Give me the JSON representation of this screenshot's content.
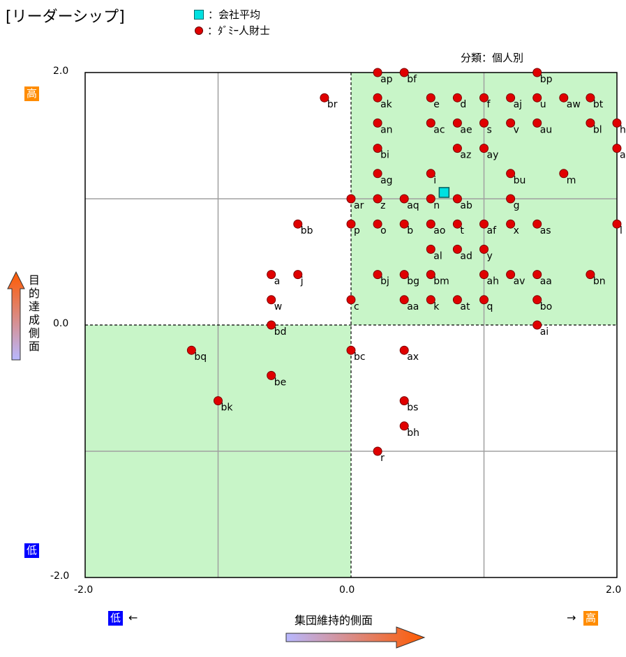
{
  "title": "[リーダーシップ]",
  "legend": {
    "avg_label": "：会社平均",
    "person_label": "：ﾀﾞﾐｰ人財士",
    "avg_color": "#00e0e0",
    "person_color": "#e00000"
  },
  "classification": "分類：個人別",
  "axes": {
    "x_label": "集団維持的側面",
    "y_label": "目的達成側面",
    "high": "高",
    "low": "低",
    "left_arrow": "←",
    "right_arrow": "→",
    "x_ticks": [
      "-2.0",
      "0.0",
      "2.0"
    ],
    "y_ticks": [
      "2.0",
      "0.0",
      "-2.0"
    ],
    "high_color": "#ff8c00",
    "low_color": "#0000ff",
    "quadrant_color": "#c8f5c8"
  },
  "chart_data": {
    "type": "scatter",
    "title": "[リーダーシップ]",
    "xlabel": "集団維持的側面",
    "ylabel": "目的達成側面",
    "xlim": [
      -2.0,
      2.0
    ],
    "ylim": [
      -2.0,
      2.0
    ],
    "grid": true,
    "company_average": {
      "x": 0.7,
      "y": 1.05
    },
    "points": [
      {
        "label": "ap",
        "x": 0.2,
        "y": 2.0
      },
      {
        "label": "bf",
        "x": 0.4,
        "y": 2.0
      },
      {
        "label": "bp",
        "x": 1.4,
        "y": 2.0
      },
      {
        "label": "br",
        "x": -0.2,
        "y": 1.8
      },
      {
        "label": "ak",
        "x": 0.2,
        "y": 1.8
      },
      {
        "label": "e",
        "x": 0.6,
        "y": 1.8
      },
      {
        "label": "d",
        "x": 0.8,
        "y": 1.8
      },
      {
        "label": "f",
        "x": 1.0,
        "y": 1.8
      },
      {
        "label": "aj",
        "x": 1.2,
        "y": 1.8
      },
      {
        "label": "u",
        "x": 1.4,
        "y": 1.8
      },
      {
        "label": "aw",
        "x": 1.6,
        "y": 1.8
      },
      {
        "label": "bt",
        "x": 1.8,
        "y": 1.8
      },
      {
        "label": "an",
        "x": 0.2,
        "y": 1.6
      },
      {
        "label": "ac",
        "x": 0.6,
        "y": 1.6
      },
      {
        "label": "ae",
        "x": 0.8,
        "y": 1.6
      },
      {
        "label": "s",
        "x": 1.0,
        "y": 1.6
      },
      {
        "label": "v",
        "x": 1.2,
        "y": 1.6
      },
      {
        "label": "au",
        "x": 1.4,
        "y": 1.6
      },
      {
        "label": "bl",
        "x": 1.8,
        "y": 1.6
      },
      {
        "label": "h",
        "x": 2.0,
        "y": 1.6
      },
      {
        "label": "bi",
        "x": 0.2,
        "y": 1.4
      },
      {
        "label": "az",
        "x": 0.8,
        "y": 1.4
      },
      {
        "label": "ay",
        "x": 1.0,
        "y": 1.4
      },
      {
        "label": "a",
        "x": 2.0,
        "y": 1.4
      },
      {
        "label": "ag",
        "x": 0.2,
        "y": 1.2
      },
      {
        "label": "i",
        "x": 0.6,
        "y": 1.2
      },
      {
        "label": "bu",
        "x": 1.2,
        "y": 1.2
      },
      {
        "label": "m",
        "x": 1.6,
        "y": 1.2
      },
      {
        "label": "ar",
        "x": 0.0,
        "y": 1.0
      },
      {
        "label": "z",
        "x": 0.2,
        "y": 1.0
      },
      {
        "label": "aq",
        "x": 0.4,
        "y": 1.0
      },
      {
        "label": "n",
        "x": 0.6,
        "y": 1.0
      },
      {
        "label": "ab",
        "x": 0.8,
        "y": 1.0
      },
      {
        "label": "g",
        "x": 1.2,
        "y": 1.0
      },
      {
        "label": "bb",
        "x": -0.4,
        "y": 0.8
      },
      {
        "label": "p",
        "x": 0.0,
        "y": 0.8
      },
      {
        "label": "o",
        "x": 0.2,
        "y": 0.8
      },
      {
        "label": "b",
        "x": 0.4,
        "y": 0.8
      },
      {
        "label": "ao",
        "x": 0.6,
        "y": 0.8
      },
      {
        "label": "t",
        "x": 0.8,
        "y": 0.8
      },
      {
        "label": "af",
        "x": 1.0,
        "y": 0.8
      },
      {
        "label": "x",
        "x": 1.2,
        "y": 0.8
      },
      {
        "label": "as",
        "x": 1.4,
        "y": 0.8
      },
      {
        "label": "l",
        "x": 2.0,
        "y": 0.8
      },
      {
        "label": "al",
        "x": 0.6,
        "y": 0.6
      },
      {
        "label": "ad",
        "x": 0.8,
        "y": 0.6
      },
      {
        "label": "y",
        "x": 1.0,
        "y": 0.6
      },
      {
        "label": "a",
        "x": -0.6,
        "y": 0.4
      },
      {
        "label": "j",
        "x": -0.4,
        "y": 0.4
      },
      {
        "label": "bj",
        "x": 0.2,
        "y": 0.4
      },
      {
        "label": "bg",
        "x": 0.4,
        "y": 0.4
      },
      {
        "label": "bm",
        "x": 0.6,
        "y": 0.4
      },
      {
        "label": "ah",
        "x": 1.0,
        "y": 0.4
      },
      {
        "label": "av",
        "x": 1.2,
        "y": 0.4
      },
      {
        "label": "aa",
        "x": 1.4,
        "y": 0.4
      },
      {
        "label": "bn",
        "x": 1.8,
        "y": 0.4
      },
      {
        "label": "w",
        "x": -0.6,
        "y": 0.2
      },
      {
        "label": "c",
        "x": 0.0,
        "y": 0.2
      },
      {
        "label": "aa",
        "x": 0.4,
        "y": 0.2
      },
      {
        "label": "k",
        "x": 0.6,
        "y": 0.2
      },
      {
        "label": "at",
        "x": 0.8,
        "y": 0.2
      },
      {
        "label": "q",
        "x": 1.0,
        "y": 0.2
      },
      {
        "label": "bo",
        "x": 1.4,
        "y": 0.2
      },
      {
        "label": "bd",
        "x": -0.6,
        "y": 0.0
      },
      {
        "label": "ai",
        "x": 1.4,
        "y": 0.0
      },
      {
        "label": "bq",
        "x": -1.2,
        "y": -0.2
      },
      {
        "label": "bc",
        "x": 0.0,
        "y": -0.2
      },
      {
        "label": "ax",
        "x": 0.4,
        "y": -0.2
      },
      {
        "label": "be",
        "x": -0.6,
        "y": -0.4
      },
      {
        "label": "bk",
        "x": -1.0,
        "y": -0.6
      },
      {
        "label": "bs",
        "x": 0.4,
        "y": -0.6
      },
      {
        "label": "bh",
        "x": 0.4,
        "y": -0.8
      },
      {
        "label": "r",
        "x": 0.2,
        "y": -1.0
      }
    ]
  }
}
